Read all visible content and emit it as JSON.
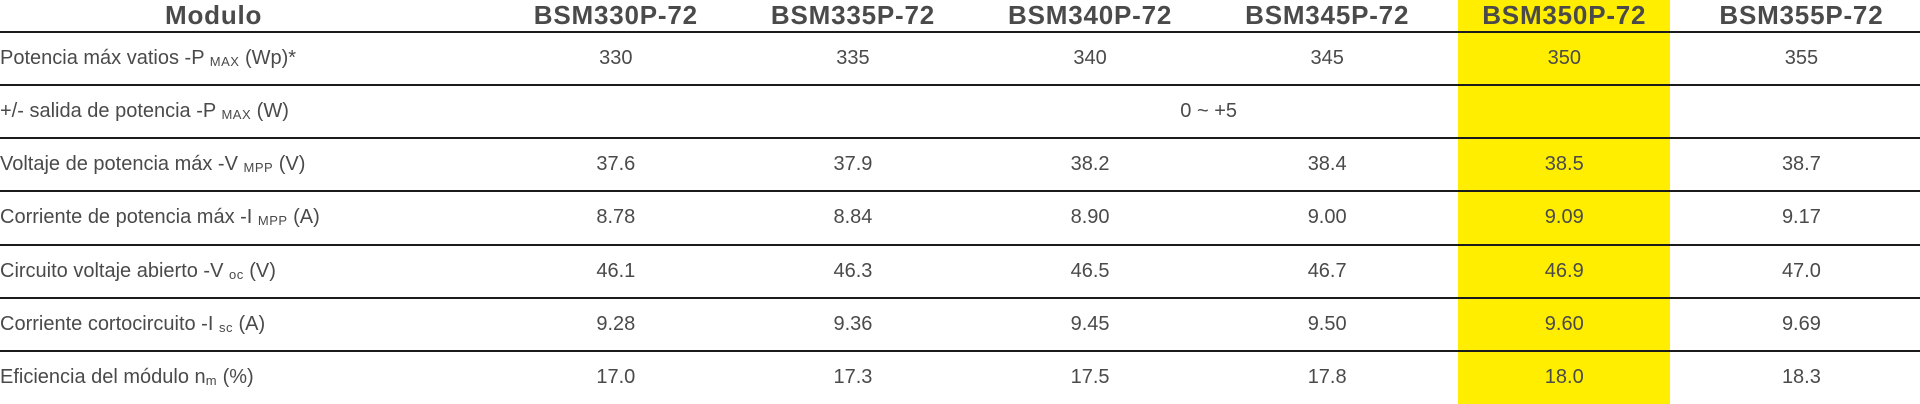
{
  "table": {
    "title_header": "Modulo",
    "columns": [
      "BSM330P-72",
      "BSM335P-72",
      "BSM340P-72",
      "BSM345P-72",
      "BSM350P-72",
      "BSM355P-72"
    ],
    "highlight": {
      "column": "BSM350P-72",
      "column_index": 4,
      "color": "#ffee00"
    },
    "rows": [
      {
        "name": "max-power",
        "label_pre": "Potencia máx vatios -P ",
        "label_sub": "MAX",
        "label_post": " (Wp)*",
        "values": [
          "330",
          "335",
          "340",
          "345",
          "350",
          "355"
        ]
      },
      {
        "name": "power-output-tolerance",
        "label_pre": "+/- salida de potencia -P ",
        "label_sub": "MAX",
        "label_post": " (W)",
        "span_value": "0 ~ +5"
      },
      {
        "name": "max-power-voltage",
        "label_pre": "Voltaje de potencia máx -V ",
        "label_sub": "MPP",
        "label_post": " (V)",
        "values": [
          "37.6",
          "37.9",
          "38.2",
          "38.4",
          "38.5",
          "38.7"
        ]
      },
      {
        "name": "max-power-current",
        "label_pre": "Corriente de potencia máx -I ",
        "label_sub": "MPP",
        "label_post": " (A)",
        "values": [
          "8.78",
          "8.84",
          "8.90",
          "9.00",
          "9.09",
          "9.17"
        ]
      },
      {
        "name": "open-circuit-voltage",
        "label_pre": "Circuito voltaje abierto -V ",
        "label_sub": "oc",
        "label_post": " (V)",
        "values": [
          "46.1",
          "46.3",
          "46.5",
          "46.7",
          "46.9",
          "47.0"
        ]
      },
      {
        "name": "short-circuit-current",
        "label_pre": "Corriente cortocircuito -I ",
        "label_sub": "sc",
        "label_post": " (A)",
        "values": [
          "9.28",
          "9.36",
          "9.45",
          "9.50",
          "9.60",
          "9.69"
        ]
      },
      {
        "name": "module-efficiency",
        "label_pre": "Eficiencia del módulo n",
        "label_sub": "m",
        "label_post": " (%)",
        "values": [
          "17.0",
          "17.3",
          "17.5",
          "17.8",
          "18.0",
          "18.3"
        ]
      }
    ]
  }
}
